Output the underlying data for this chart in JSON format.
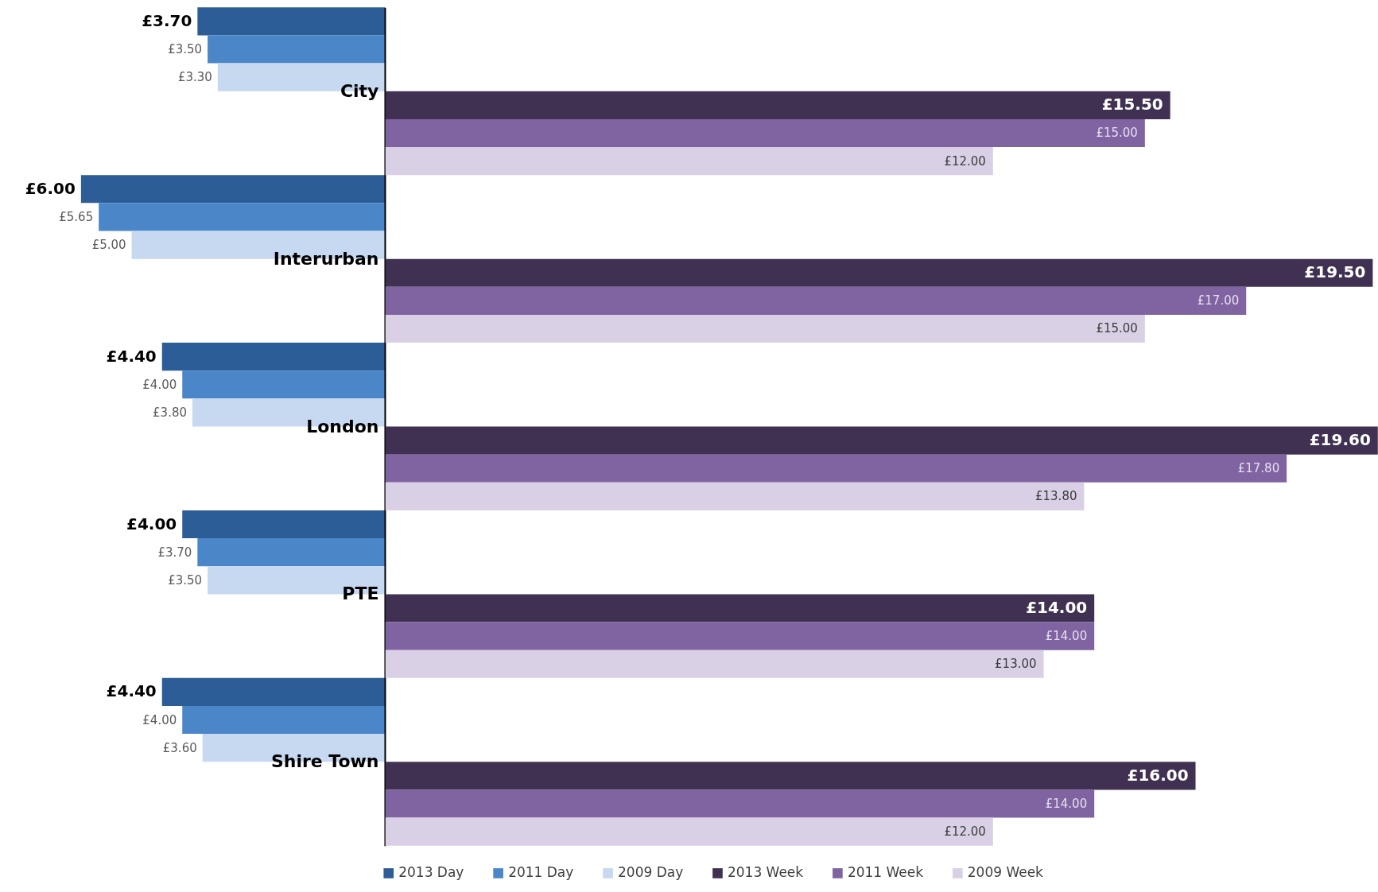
{
  "chart_data": [
    {
      "type": "bar",
      "orientation": "horizontal",
      "categories": [
        "City",
        "Interurban",
        "London",
        "PTE",
        "Shire Town"
      ],
      "xlim": [
        7.6,
        0
      ],
      "tick_labels": "y",
      "legend": "bottom",
      "series": [
        {
          "name": "2013 Day",
          "color": "#2c5d96",
          "values": [
            3.7,
            6.0,
            4.4,
            4.0,
            4.4
          ],
          "value_labels": [
            "£3.70",
            "£6.00",
            "£4.40",
            "£4.00",
            "£4.40"
          ]
        },
        {
          "name": "2011 Day",
          "color": "#4a86c8",
          "values": [
            3.5,
            5.65,
            4.0,
            3.7,
            4.0
          ],
          "value_labels": [
            "£3.50",
            "£5.65",
            "£4.00",
            "£3.70",
            "£4.00"
          ]
        },
        {
          "name": "2009 Day",
          "color": "#c6d9f1",
          "values": [
            3.3,
            5.0,
            3.8,
            3.5,
            3.6
          ],
          "value_labels": [
            "£3.30",
            "£5.00",
            "£3.80",
            "£3.50",
            "£3.60"
          ]
        }
      ]
    },
    {
      "type": "bar",
      "orientation": "horizontal",
      "categories": [
        "City",
        "Interurban",
        "London",
        "PTE",
        "Shire Town"
      ],
      "xlim": [
        0,
        19.6
      ],
      "tick_labels": false,
      "legend": "bottom",
      "series": [
        {
          "name": "2013 Week",
          "color": "#403152",
          "values": [
            15.5,
            19.5,
            19.6,
            14.0,
            16.0
          ],
          "value_labels": [
            "£15.50",
            "£19.50",
            "£19.60",
            "£14.00",
            "£16.00"
          ]
        },
        {
          "name": "2011 Week",
          "color": "#8064a2",
          "values": [
            15.0,
            17.0,
            17.8,
            14.0,
            14.0
          ],
          "value_labels": [
            "£15.00",
            "£17.00",
            "£17.80",
            "£14.00",
            "£14.00"
          ]
        },
        {
          "name": "2009 Week",
          "color": "#d9d0e6",
          "values": [
            12.0,
            15.0,
            13.8,
            13.0,
            12.0
          ],
          "value_labels": [
            "£12.00",
            "£15.00",
            "£13.80",
            "£13.00",
            "£12.00"
          ]
        }
      ]
    }
  ]
}
